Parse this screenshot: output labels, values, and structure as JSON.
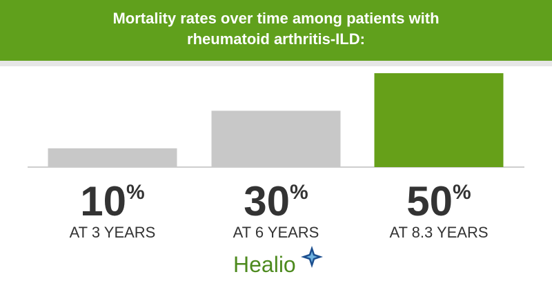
{
  "chart_data": {
    "type": "bar",
    "title": "Mortality rates over time among patients with rheumatoid arthritis-ILD:",
    "categories": [
      "AT 3 YEARS",
      "AT 6 YEARS",
      "AT 8.3 YEARS"
    ],
    "values": [
      10,
      30,
      50
    ],
    "value_labels": [
      "10%",
      "30%",
      "50%"
    ],
    "colors": [
      "#c8c8c8",
      "#c8c8c8",
      "#66a019"
    ]
  },
  "logo": "Healio"
}
